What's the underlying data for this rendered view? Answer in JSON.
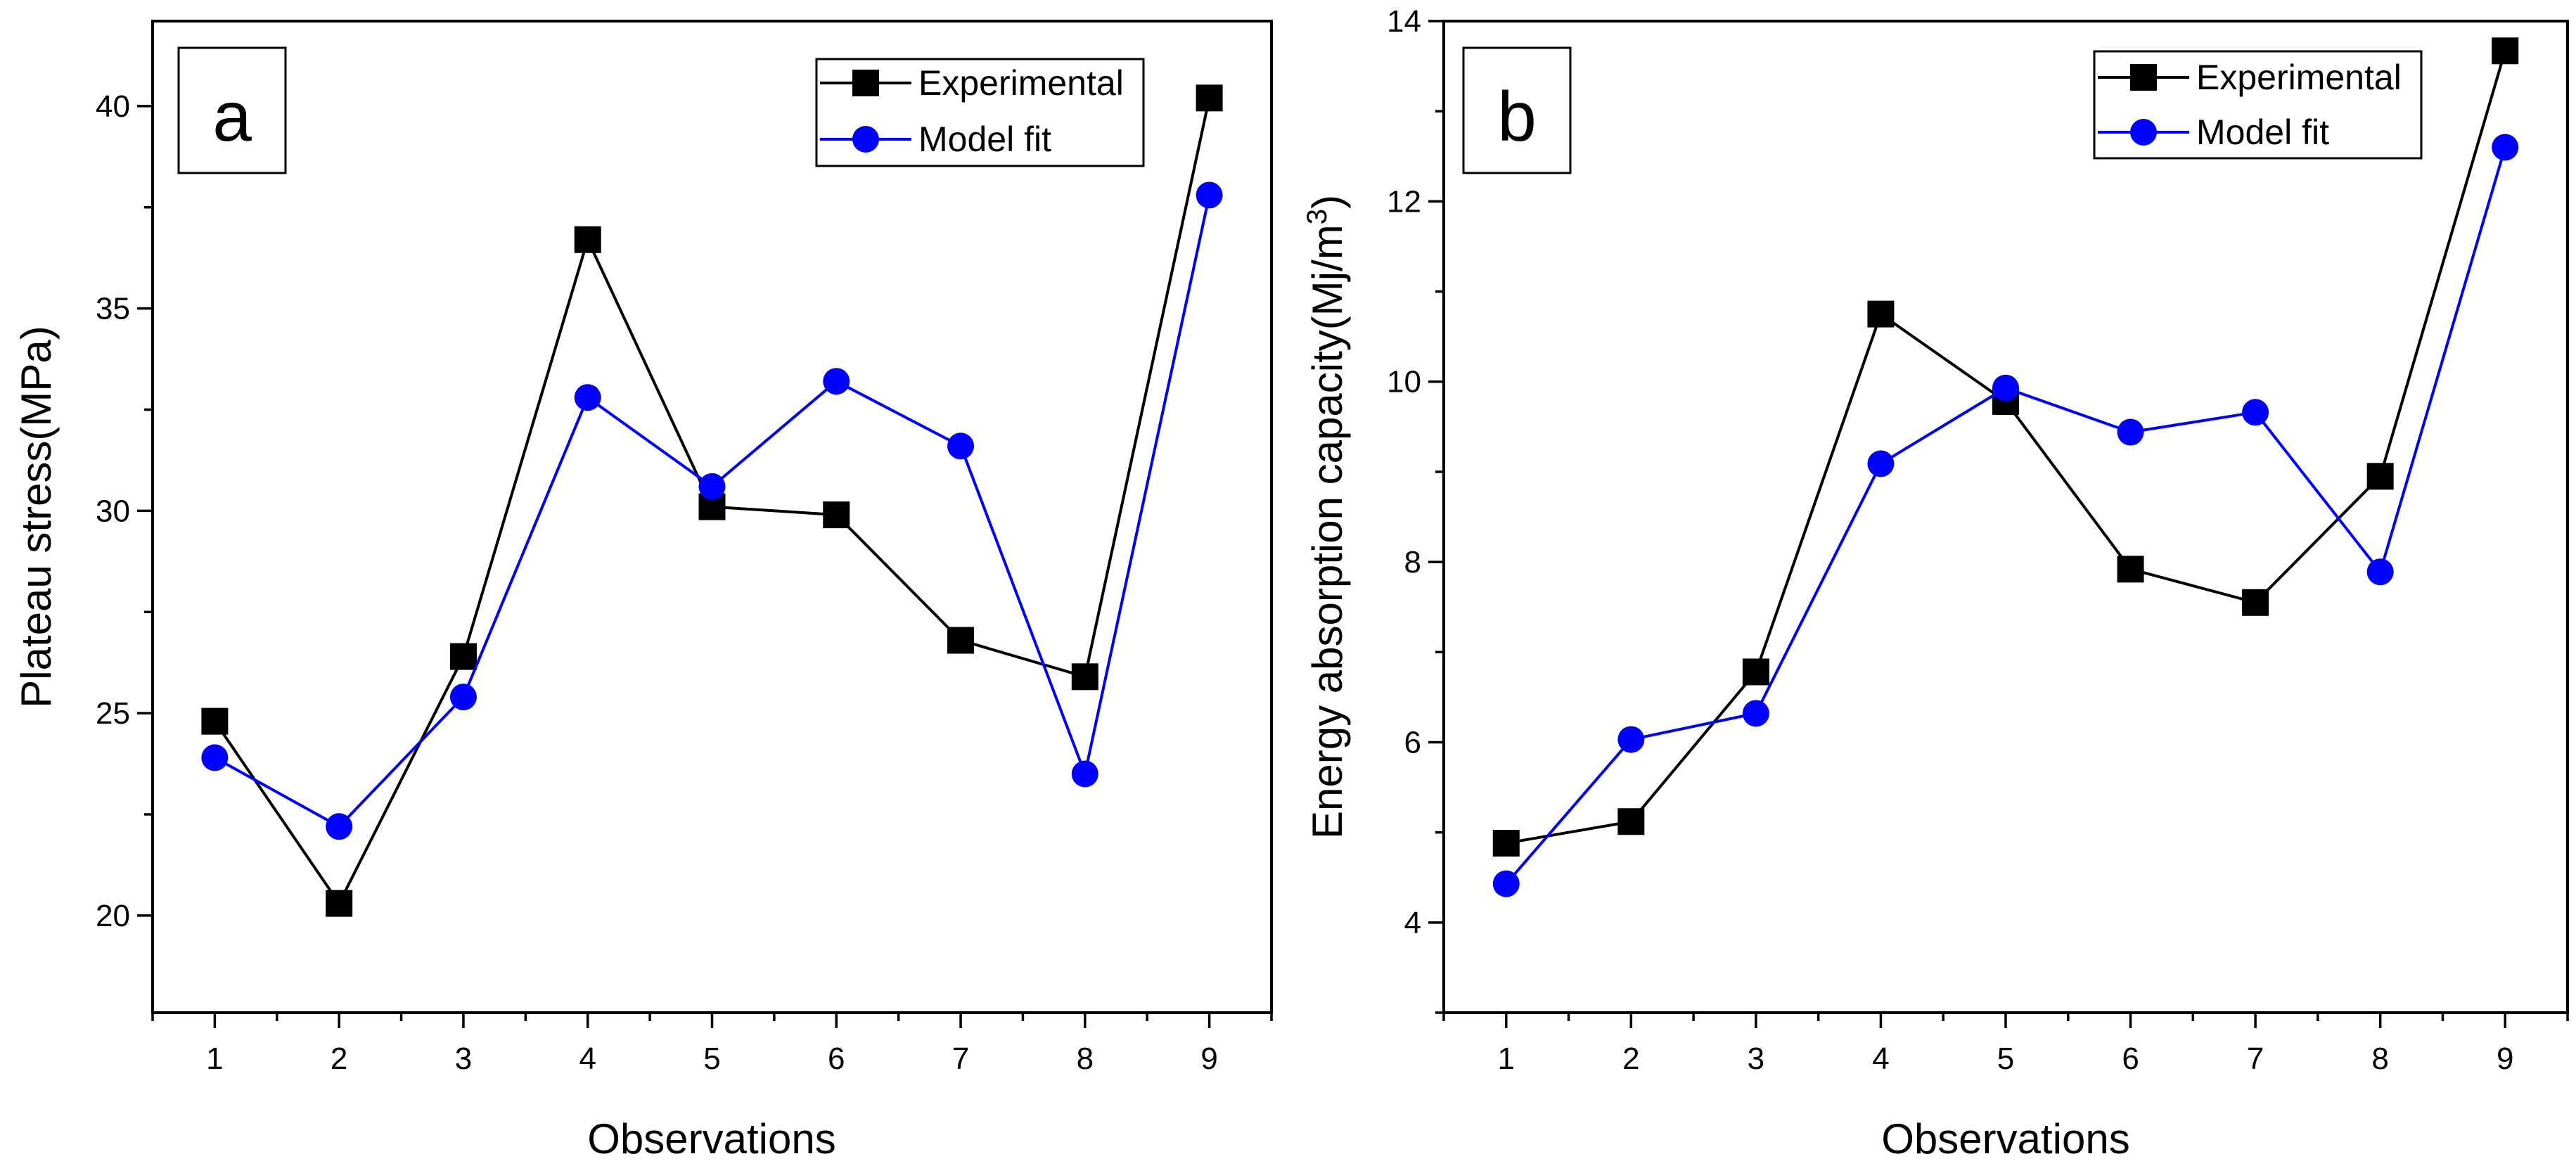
{
  "chart_data": [
    {
      "type": "line",
      "panel_label": "a",
      "xlabel": "Observations",
      "ylabel": "Plateau stress(MPa)",
      "x": [
        1,
        2,
        3,
        4,
        5,
        6,
        7,
        8,
        9
      ],
      "xlim": [
        0.5,
        9.5
      ],
      "ylim": [
        17.6,
        42.1
      ],
      "xticks": [
        "1",
        "2",
        "3",
        "4",
        "5",
        "6",
        "7",
        "8",
        "9"
      ],
      "yticks": [
        20,
        25,
        30,
        35,
        40
      ],
      "ytick_labels": [
        "20",
        "25",
        "30",
        "35",
        "40"
      ],
      "legend_position": "top-right",
      "series": [
        {
          "name": "Experimental",
          "color": "#000000",
          "marker": "square",
          "values": [
            24.8,
            20.3,
            26.4,
            36.7,
            30.1,
            29.9,
            26.8,
            25.9,
            40.2
          ]
        },
        {
          "name": "Model fit",
          "color": "#0000ff",
          "marker": "circle",
          "values": [
            23.9,
            22.2,
            25.4,
            32.8,
            30.6,
            33.2,
            31.6,
            23.5,
            37.8
          ]
        }
      ]
    },
    {
      "type": "line",
      "panel_label": "b",
      "xlabel": "Observations",
      "ylabel_main": "Energy absorption capacity(Mj/m",
      "ylabel_sup": "3",
      "ylabel_close": ")",
      "x": [
        1,
        2,
        3,
        4,
        5,
        6,
        7,
        8,
        9
      ],
      "xlim": [
        0.5,
        9.5
      ],
      "ylim": [
        3.0,
        14.0
      ],
      "xticks": [
        "1",
        "2",
        "3",
        "4",
        "5",
        "6",
        "7",
        "8",
        "9"
      ],
      "yticks": [
        4,
        6,
        8,
        10,
        12,
        14
      ],
      "ytick_labels": [
        "4",
        "6",
        "8",
        "10",
        "12",
        "14"
      ],
      "legend_position": "top-right",
      "series": [
        {
          "name": "Experimental",
          "color": "#000000",
          "marker": "square",
          "values": [
            4.88,
            5.12,
            6.78,
            10.75,
            9.78,
            7.92,
            7.55,
            8.95,
            13.67
          ]
        },
        {
          "name": "Model fit",
          "color": "#0000ff",
          "marker": "circle",
          "values": [
            4.43,
            6.03,
            6.32,
            9.09,
            9.93,
            9.44,
            9.66,
            7.89,
            12.6
          ]
        }
      ]
    }
  ]
}
